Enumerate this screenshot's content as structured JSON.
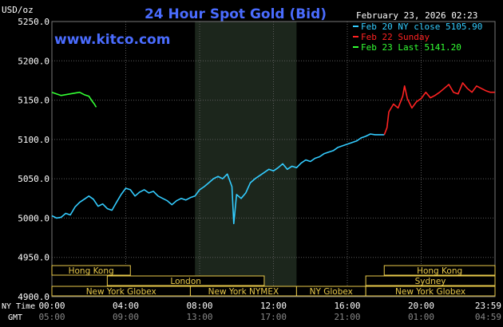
{
  "header": {
    "title": "24 Hour Spot Gold (Bid)",
    "unit": "USD/oz",
    "timestamp": "February 23, 2026 02:23",
    "watermark": "www.kitco.com"
  },
  "legend": [
    {
      "label": "Feb 20 NY close 5105.90",
      "color": "#33ccff"
    },
    {
      "label": "Feb 22 Sunday",
      "color": "#ff2222"
    },
    {
      "label": "Feb 23 Last 5141.20",
      "color": "#33ff33"
    }
  ],
  "axis_labels": {
    "ny_time": "NY Time",
    "gmt": "GMT"
  },
  "markets": [
    {
      "name": "Hong Kong",
      "row": 0,
      "start": 0,
      "end": 4.25
    },
    {
      "name": "Hong Kong",
      "row": 0,
      "start": 18.0,
      "end": 24.0
    },
    {
      "name": "London",
      "row": 1,
      "start": 3.0,
      "end": 11.5
    },
    {
      "name": "Sydney",
      "row": 1,
      "start": 17.0,
      "end": 24.0
    },
    {
      "name": "New York Globex",
      "row": 2,
      "start": 0,
      "end": 7.5
    },
    {
      "name": "New York NYMEX",
      "row": 2,
      "start": 7.5,
      "end": 13.25
    },
    {
      "name": "NY Globex",
      "row": 2,
      "start": 13.25,
      "end": 17.0
    },
    {
      "name": "New York Globex",
      "row": 2,
      "start": 17.0,
      "end": 24.0
    }
  ],
  "chart_data": {
    "type": "line",
    "title": "24 Hour Spot Gold (Bid)",
    "ylabel": "USD/oz",
    "ylim": [
      4900,
      5250
    ],
    "yticks": [
      4900,
      4950,
      5000,
      5050,
      5100,
      5150,
      5200,
      5250
    ],
    "ytick_labels": [
      "4900.0",
      "4950.0",
      "5000.0",
      "5050.0",
      "5100.0",
      "5150.0",
      "5200.0",
      "5250.0"
    ],
    "xlim": [
      0,
      24
    ],
    "xticks_ny": [
      "00:00",
      "04:00",
      "08:00",
      "12:00",
      "16:00",
      "20:00",
      "23:59"
    ],
    "xticks_gmt": [
      "05:00",
      "09:00",
      "13:00",
      "17:00",
      "21:00",
      "01:00",
      "04:59"
    ],
    "nymex_session": [
      7.75,
      13.25
    ],
    "grid": true,
    "series": [
      {
        "name": "Feb 20 NY close 5105.90",
        "color": "#33ccff",
        "x": [
          0,
          0.25,
          0.5,
          0.75,
          1.0,
          1.25,
          1.5,
          1.75,
          2.0,
          2.25,
          2.5,
          2.75,
          3.0,
          3.25,
          3.5,
          3.75,
          4.0,
          4.25,
          4.5,
          4.75,
          5.0,
          5.25,
          5.5,
          5.75,
          6.0,
          6.25,
          6.5,
          6.75,
          7.0,
          7.25,
          7.5,
          7.75,
          8.0,
          8.25,
          8.5,
          8.75,
          9.0,
          9.25,
          9.5,
          9.75,
          9.85,
          10.0,
          10.25,
          10.5,
          10.75,
          11.0,
          11.25,
          11.5,
          11.75,
          12.0,
          12.25,
          12.5,
          12.75,
          13.0,
          13.25,
          13.5,
          13.75,
          14.0,
          14.25,
          14.5,
          14.75,
          15.0,
          15.25,
          15.5,
          15.75,
          16.0,
          16.25,
          16.5,
          16.75,
          17.0,
          17.25,
          17.5,
          17.75,
          18.0
        ],
        "values": [
          5003,
          5000,
          5001,
          5006,
          5004,
          5014,
          5020,
          5024,
          5028,
          5024,
          5015,
          5018,
          5012,
          5010,
          5020,
          5030,
          5038,
          5036,
          5028,
          5033,
          5036,
          5032,
          5034,
          5028,
          5025,
          5022,
          5017,
          5022,
          5025,
          5023,
          5026,
          5028,
          5036,
          5040,
          5045,
          5050,
          5053,
          5050,
          5056,
          5040,
          4993,
          5030,
          5025,
          5032,
          5045,
          5050,
          5054,
          5058,
          5062,
          5060,
          5064,
          5069,
          5062,
          5066,
          5064,
          5070,
          5074,
          5072,
          5076,
          5078,
          5082,
          5084,
          5086,
          5090,
          5092,
          5094,
          5096,
          5098,
          5102,
          5104,
          5107,
          5106,
          5106,
          5106
        ]
      },
      {
        "name": "Feb 22 Sunday",
        "color": "#ff2222",
        "x": [
          18.0,
          18.15,
          18.25,
          18.5,
          18.75,
          19.0,
          19.1,
          19.25,
          19.5,
          19.75,
          20.0,
          20.25,
          20.5,
          20.75,
          21.0,
          21.25,
          21.5,
          21.75,
          22.0,
          22.25,
          22.5,
          22.75,
          23.0,
          23.25,
          23.5,
          23.75,
          23.99
        ],
        "values": [
          5106,
          5115,
          5135,
          5145,
          5140,
          5155,
          5168,
          5152,
          5140,
          5148,
          5152,
          5160,
          5153,
          5156,
          5160,
          5165,
          5170,
          5160,
          5158,
          5172,
          5165,
          5160,
          5168,
          5165,
          5162,
          5160,
          5160
        ]
      },
      {
        "name": "Feb 23 Last 5141.20",
        "color": "#33ff33",
        "x": [
          0,
          0.25,
          0.5,
          0.75,
          1.0,
          1.25,
          1.5,
          1.75,
          2.0,
          2.2,
          2.3,
          2.4
        ],
        "values": [
          5160,
          5158,
          5156,
          5157,
          5158,
          5159,
          5160,
          5157,
          5155,
          5148,
          5145,
          5141
        ]
      }
    ]
  }
}
